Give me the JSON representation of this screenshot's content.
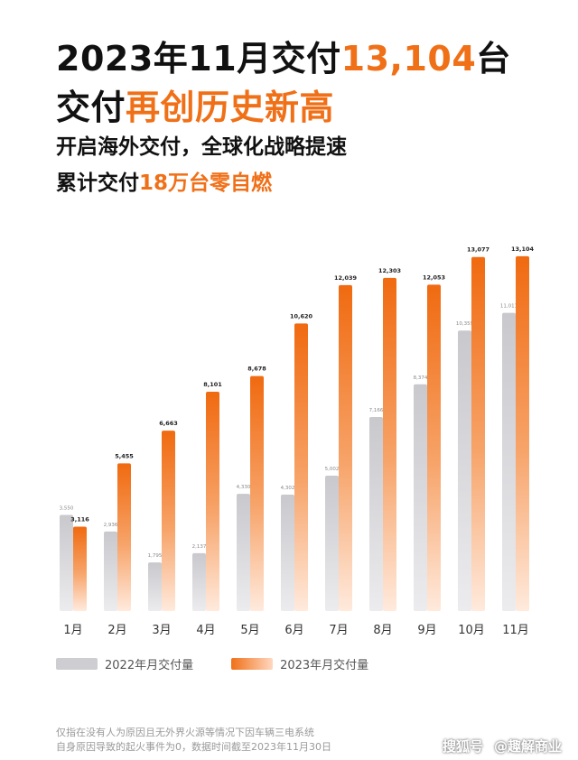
{
  "headline": {
    "line1_prefix": "2023年11月交付",
    "line1_highlight": "13,104",
    "line1_suffix": "台",
    "line2_prefix": "交付",
    "line2_highlight": "再创历史新高"
  },
  "subheadline": {
    "line1": "开启海外交付，全球化战略提速",
    "line2_prefix": "累计交付",
    "line2_highlight": "18万台零自燃"
  },
  "chart_data": {
    "type": "bar",
    "categories": [
      "1月",
      "2月",
      "3月",
      "4月",
      "5月",
      "6月",
      "7月",
      "8月",
      "9月",
      "10月",
      "11月"
    ],
    "series": [
      {
        "name": "2022年月交付量",
        "values": [
          3550,
          2936,
          1795,
          2137,
          4330,
          4302,
          5002,
          7166,
          8374,
          10359,
          11011
        ],
        "labels": [
          "3,550",
          "2,936",
          "1,795",
          "2,137",
          "4,330",
          "4,302",
          "5,002",
          "7,166",
          "8,374",
          "10,359",
          "11,011"
        ],
        "color": "#cdcdd2"
      },
      {
        "name": "2023年月交付量",
        "values": [
          3116,
          5455,
          6663,
          8101,
          8678,
          10620,
          12039,
          12303,
          12053,
          13077,
          13104
        ],
        "labels": [
          "3,116",
          "5,455",
          "6,663",
          "8,101",
          "8,678",
          "10,620",
          "12,039",
          "12,303",
          "12,053",
          "13,077",
          "13,104"
        ],
        "color": "#f07018"
      }
    ],
    "ylim": [
      0,
      14000
    ],
    "grid": false,
    "legend": "bottom-left"
  },
  "footnote": {
    "line1": "仅指在没有人为原因且无外界火源等情况下因车辆三电系统",
    "line2": "自身原因导致的起火事件为0，数据时间截至2023年11月30日"
  },
  "watermark": {
    "part1": "搜狐号",
    "part2": "@趣解商业"
  }
}
